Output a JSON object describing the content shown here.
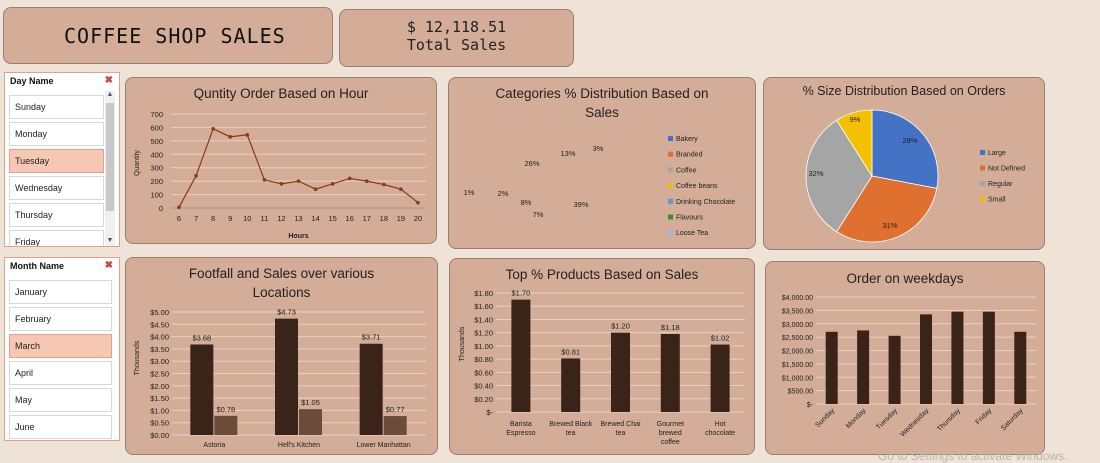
{
  "dashboard": {
    "title": "COFFEE SHOP SALES",
    "total_value": "$ 12,118.51",
    "total_label": "Total Sales"
  },
  "slicers": {
    "day": {
      "header": "Day Name",
      "items": [
        "Sunday",
        "Monday",
        "Tuesday",
        "Wednesday",
        "Thursday",
        "Friday"
      ],
      "selected": "Tuesday"
    },
    "month": {
      "header": "Month Name",
      "items": [
        "January",
        "February",
        "March",
        "April",
        "May",
        "June"
      ],
      "selected": "March"
    },
    "clear_icon": "clear-filter-icon"
  },
  "watermark": "Go to Settings to activate Windows.",
  "chart_data": [
    {
      "id": "hour",
      "type": "line",
      "title": "Quntity Order Based on Hour",
      "xlabel": "Hours",
      "ylabel": "Quantity",
      "x": [
        6,
        7,
        8,
        9,
        10,
        11,
        12,
        13,
        14,
        15,
        16,
        17,
        18,
        19,
        20
      ],
      "values": [
        5,
        240,
        590,
        530,
        545,
        210,
        180,
        200,
        140,
        180,
        220,
        200,
        175,
        140,
        40
      ],
      "ylim": [
        0,
        700
      ],
      "yticks": [
        0,
        100,
        200,
        300,
        400,
        500,
        600,
        700
      ],
      "color": "#8b3a12"
    },
    {
      "id": "categories",
      "type": "pie",
      "title": "Categories % Distribution Based on Sales",
      "slices": [
        {
          "name": "Bakery",
          "value": 13,
          "label": "13%",
          "color": "#4472c4"
        },
        {
          "name": "Branded",
          "value": 3,
          "label": "3%",
          "color": "#e07030"
        },
        {
          "name": "Coffee",
          "value": 39,
          "label": "39%",
          "color": "#a5a5a5"
        },
        {
          "name": "Coffee beans",
          "value": 7,
          "label": "7%",
          "color": "#f5c000"
        },
        {
          "name": "Drinking Chocolate",
          "value": 8,
          "label": "8%",
          "color": "#5b9bd5"
        },
        {
          "name": "Flavours",
          "value": 1,
          "label": "1%",
          "color": "#3e8e2f"
        },
        {
          "name": "Loose Tea",
          "value": 2,
          "label": "2%",
          "color": "#9db5dc"
        },
        {
          "name": "",
          "value": 1,
          "label": "1%",
          "color": "#a0522d"
        },
        {
          "name": "",
          "value": 26,
          "label": "26%",
          "color": "#c8c8d0"
        }
      ]
    },
    {
      "id": "size",
      "type": "pie",
      "title": "% Size Distribution Based on Orders",
      "slices": [
        {
          "name": "Large",
          "value": 28,
          "label": "28%",
          "color": "#4472c4"
        },
        {
          "name": "Not Defined",
          "value": 31,
          "label": "31%",
          "color": "#e07030"
        },
        {
          "name": "Regular",
          "value": 32,
          "label": "32%",
          "color": "#a5a5a5"
        },
        {
          "name": "Small",
          "value": 9,
          "label": "9%",
          "color": "#f5c000"
        }
      ]
    },
    {
      "id": "footfall",
      "type": "bar",
      "title": "Footfall and Sales over various Locations",
      "ylabel": "Thousands",
      "categories": [
        "Astoria",
        "Hell's Kitchen",
        "Lower Manhattan"
      ],
      "series": [
        {
          "values": [
            3.68,
            4.73,
            3.71
          ],
          "labels": [
            "$3.68",
            "$4.73",
            "$3.71"
          ],
          "color": "#3a2318"
        },
        {
          "values": [
            0.78,
            1.05,
            0.77
          ],
          "labels": [
            "$0.78",
            "$1.05",
            "$0.77"
          ],
          "color": "#6b4c3b"
        }
      ],
      "ylim": [
        0,
        5
      ],
      "yticks": [
        "$0.00",
        "$0.50",
        "$1.00",
        "$1.50",
        "$2.00",
        "$2.50",
        "$3.00",
        "$3.50",
        "$4.00",
        "$4.50",
        "$5.00"
      ]
    },
    {
      "id": "products",
      "type": "bar",
      "title": "Top % Products Based on Sales",
      "ylabel": "Thousands",
      "categories": [
        [
          "Barista",
          "Espresso"
        ],
        [
          "Brewed Black",
          "tea"
        ],
        [
          "Brewed Chai",
          "tea"
        ],
        [
          "Gourmet",
          "brewed",
          "coffee"
        ],
        [
          "Hot",
          "chocolate"
        ]
      ],
      "values": [
        1.7,
        0.81,
        1.2,
        1.18,
        1.02
      ],
      "labels": [
        "$1.70",
        "$0.81",
        "$1.20",
        "$1.18",
        "$1.02"
      ],
      "ylim": [
        0,
        1.8
      ],
      "yticks": [
        "$-",
        "$0.20",
        "$0.40",
        "$0.60",
        "$0.80",
        "$1.00",
        "$1.20",
        "$1.40",
        "$1.60",
        "$1.80"
      ],
      "color": "#3a2318"
    },
    {
      "id": "weekdays",
      "type": "bar",
      "title": "Order on weekdays",
      "categories": [
        "Sunday",
        "Monday",
        "Tuesday",
        "Wednesday",
        "Thursday",
        "Friday",
        "Saturday"
      ],
      "values": [
        2700,
        2750,
        2550,
        3350,
        3450,
        3450,
        2700
      ],
      "ylim": [
        0,
        4000
      ],
      "yticks": [
        "$-",
        "$500.00",
        "$1,000.00",
        "$1,500.00",
        "$2,000.00",
        "$2,500.00",
        "$3,000.00",
        "$3,500.00",
        "$4,000.00"
      ],
      "color": "#3a2318"
    }
  ]
}
